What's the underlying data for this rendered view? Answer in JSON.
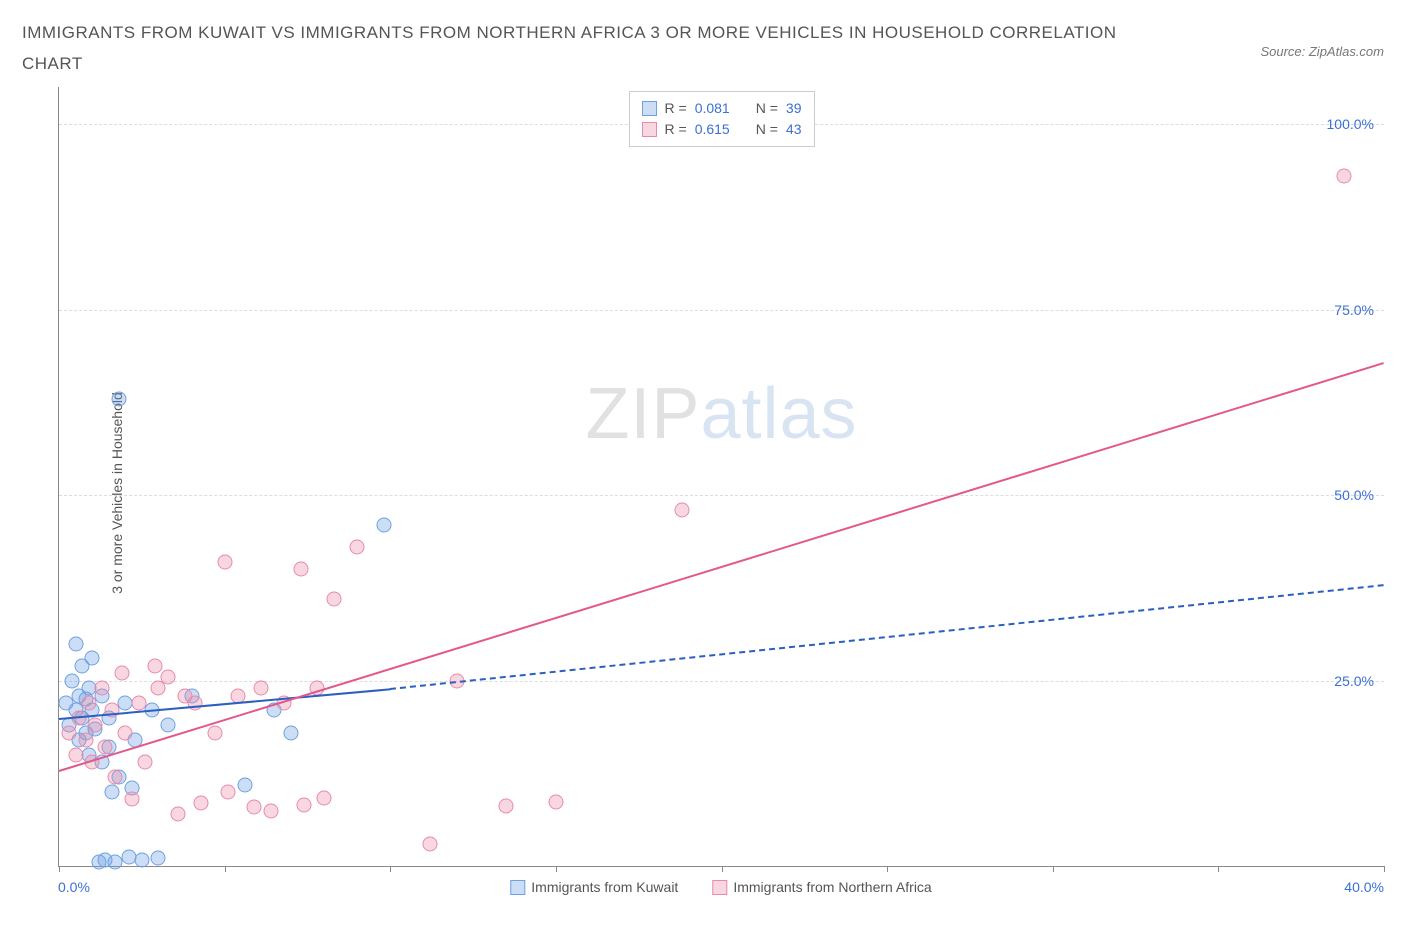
{
  "header": {
    "title": "IMMIGRANTS FROM KUWAIT VS IMMIGRANTS FROM NORTHERN AFRICA 3 OR MORE VEHICLES IN HOUSEHOLD CORRELATION CHART",
    "source_prefix": "Source: ",
    "source_name": "ZipAtlas.com"
  },
  "chart": {
    "type": "scatter",
    "ylabel": "3 or more Vehicles in Household",
    "xlim": [
      0,
      40
    ],
    "ylim": [
      0,
      105
    ],
    "xtick_left": "0.0%",
    "xtick_right": "40.0%",
    "xtick_marks_at": [
      0,
      5,
      10,
      15,
      20,
      25,
      30,
      35,
      40
    ],
    "yticks": [
      {
        "v": 25,
        "label": "25.0%"
      },
      {
        "v": 50,
        "label": "50.0%"
      },
      {
        "v": 75,
        "label": "75.0%"
      },
      {
        "v": 100,
        "label": "100.0%"
      }
    ],
    "grid_color": "#dddddd",
    "axis_color": "#888888",
    "tick_label_color": "#3b6fd6",
    "background": "#ffffff",
    "watermark": {
      "zip": "ZIP",
      "atlas": "atlas"
    },
    "series": [
      {
        "key": "kuwait",
        "label": "Immigrants from Kuwait",
        "fill": "rgba(110,160,230,0.35)",
        "stroke": "#6fa0e0",
        "trend_color": "#2b5fc0",
        "trend_dash_ext": true,
        "R": "0.081",
        "N": "39",
        "trend": {
          "x1": 0,
          "y1": 20,
          "x2": 10,
          "y2": 24,
          "ext_x2": 40,
          "ext_y2": 38
        },
        "points": [
          [
            0.2,
            22
          ],
          [
            0.3,
            19
          ],
          [
            0.4,
            25
          ],
          [
            0.5,
            21
          ],
          [
            0.5,
            30
          ],
          [
            0.6,
            17
          ],
          [
            0.6,
            23
          ],
          [
            0.7,
            20
          ],
          [
            0.7,
            27
          ],
          [
            0.8,
            18
          ],
          [
            0.8,
            22.5
          ],
          [
            0.9,
            15
          ],
          [
            0.9,
            24
          ],
          [
            1.0,
            21
          ],
          [
            1.0,
            28
          ],
          [
            1.1,
            18.5
          ],
          [
            1.2,
            0.5
          ],
          [
            1.3,
            14
          ],
          [
            1.3,
            23
          ],
          [
            1.4,
            0.8
          ],
          [
            1.5,
            16
          ],
          [
            1.5,
            20
          ],
          [
            1.6,
            10
          ],
          [
            1.7,
            0.6
          ],
          [
            1.8,
            12
          ],
          [
            1.8,
            63
          ],
          [
            2.0,
            22
          ],
          [
            2.1,
            1.2
          ],
          [
            2.2,
            10.5
          ],
          [
            2.3,
            17
          ],
          [
            2.5,
            0.9
          ],
          [
            2.8,
            21
          ],
          [
            3.0,
            1.1
          ],
          [
            3.3,
            19
          ],
          [
            4.0,
            23
          ],
          [
            5.6,
            11
          ],
          [
            6.5,
            21
          ],
          [
            7.0,
            18
          ],
          [
            9.8,
            46
          ]
        ]
      },
      {
        "key": "nafrica",
        "label": "Immigrants from Northern Africa",
        "fill": "rgba(235,140,170,0.35)",
        "stroke": "#e88aac",
        "trend_color": "#e3588c",
        "trend_dash_ext": false,
        "R": "0.615",
        "N": "43",
        "trend": {
          "x1": 0,
          "y1": 13,
          "x2": 40,
          "y2": 68
        },
        "points": [
          [
            0.3,
            18
          ],
          [
            0.5,
            15
          ],
          [
            0.6,
            20
          ],
          [
            0.8,
            17
          ],
          [
            0.9,
            22
          ],
          [
            1.0,
            14
          ],
          [
            1.1,
            19
          ],
          [
            1.3,
            24
          ],
          [
            1.4,
            16
          ],
          [
            1.6,
            21
          ],
          [
            1.7,
            12
          ],
          [
            1.9,
            26
          ],
          [
            2.0,
            18
          ],
          [
            2.2,
            9
          ],
          [
            2.4,
            22
          ],
          [
            2.6,
            14
          ],
          [
            2.9,
            27
          ],
          [
            3.0,
            24
          ],
          [
            3.3,
            25.5
          ],
          [
            3.6,
            7
          ],
          [
            3.8,
            23
          ],
          [
            4.1,
            22
          ],
          [
            4.3,
            8.5
          ],
          [
            4.7,
            18
          ],
          [
            5.0,
            41
          ],
          [
            5.1,
            10
          ],
          [
            5.4,
            23
          ],
          [
            5.9,
            8
          ],
          [
            6.1,
            24
          ],
          [
            6.4,
            7.5
          ],
          [
            6.8,
            22
          ],
          [
            7.3,
            40
          ],
          [
            7.4,
            8.2
          ],
          [
            7.8,
            24
          ],
          [
            8.0,
            9.2
          ],
          [
            8.3,
            36
          ],
          [
            9.0,
            43
          ],
          [
            11.2,
            3
          ],
          [
            12.0,
            25
          ],
          [
            13.5,
            8.1
          ],
          [
            15.0,
            8.6
          ],
          [
            18.8,
            48
          ],
          [
            38.8,
            93
          ]
        ]
      }
    ],
    "top_legend": {
      "r_label": "R =",
      "n_label": "N ="
    }
  }
}
